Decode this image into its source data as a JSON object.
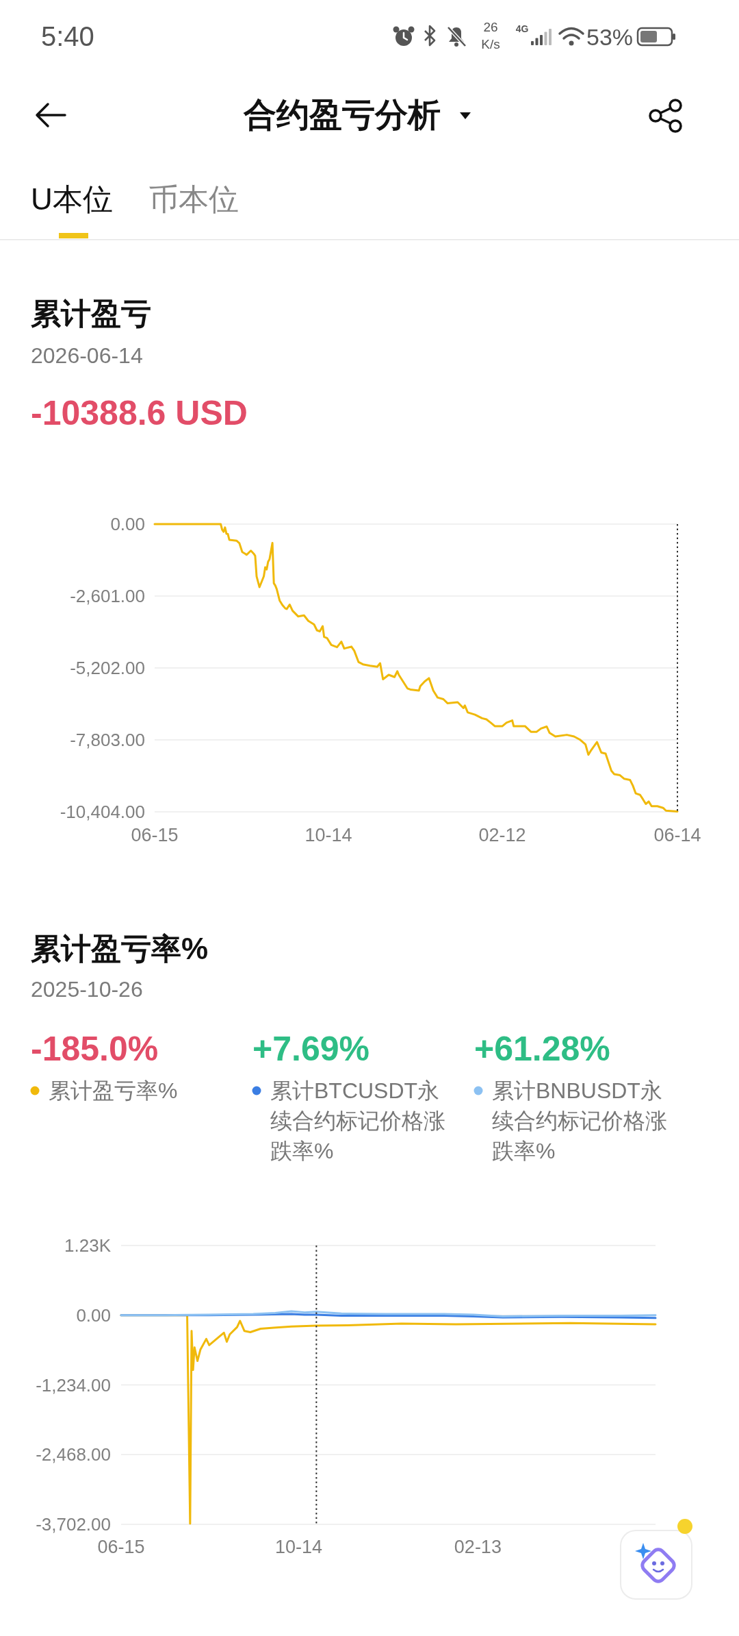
{
  "chart_data": [
    {
      "type": "other",
      "title": "合约盈亏分析",
      "annotations": [
        "5:40",
        "26 K/s",
        "4G",
        "53%",
        "U本位",
        "币本位"
      ]
    },
    {
      "type": "line",
      "title": "累计盈亏",
      "subtitle": "2026-06-14",
      "annotations": [
        "-10388.6 USD"
      ],
      "x": [
        "2025-06-15",
        "2025-07-31",
        "2025-08-01",
        "2025-08-02",
        "2025-08-03",
        "2025-08-04",
        "2025-08-05",
        "2025-08-06",
        "2025-08-11",
        "2025-08-13",
        "2025-08-15",
        "2025-08-17",
        "2025-08-18",
        "2025-08-21",
        "2025-08-23",
        "2025-08-24",
        "2025-08-25",
        "2025-08-27",
        "2025-08-30",
        "2025-08-31",
        "2025-09-01",
        "2025-09-02",
        "2025-09-03",
        "2025-09-05",
        "2025-09-06",
        "2025-09-07",
        "2025-09-08",
        "2025-09-10",
        "2025-09-12",
        "2025-09-14",
        "2025-09-15",
        "2025-09-17",
        "2025-09-19",
        "2025-09-23",
        "2025-09-27",
        "2025-09-30",
        "2025-10-04",
        "2025-10-06",
        "2025-10-08",
        "2025-10-10",
        "2025-10-11",
        "2025-10-13",
        "2025-10-16",
        "2025-10-20",
        "2025-10-23",
        "2025-10-25",
        "2025-10-30",
        "2025-11-01",
        "2025-11-04",
        "2025-11-07",
        "2025-11-12",
        "2025-11-17",
        "2025-11-19",
        "2025-11-21",
        "2025-11-25",
        "2025-11-29",
        "2025-12-01",
        "2025-12-02",
        "2025-12-08",
        "2025-12-10",
        "2025-12-16",
        "2025-12-17",
        "2025-12-20",
        "2025-12-23",
        "2025-12-26",
        "2025-12-29",
        "2026-01-02",
        "2026-01-05",
        "2026-01-12",
        "2026-01-16",
        "2026-01-17",
        "2026-01-19",
        "2026-01-24",
        "2026-01-29",
        "2026-02-01",
        "2026-02-04",
        "2026-02-07",
        "2026-02-12",
        "2026-02-15",
        "2026-02-19",
        "2026-02-20",
        "2026-02-28",
        "2026-03-04",
        "2026-03-08",
        "2026-03-11",
        "2026-03-15",
        "2026-03-17",
        "2026-03-21",
        "2026-03-29",
        "2026-04-03",
        "2026-04-07",
        "2026-04-11",
        "2026-04-13",
        "2026-04-15",
        "2026-04-19",
        "2026-04-22",
        "2026-04-25",
        "2026-04-29",
        "2026-05-01",
        "2026-05-05",
        "2026-05-08",
        "2026-05-12",
        "2026-05-14",
        "2026-05-16",
        "2026-05-19",
        "2026-05-21",
        "2026-05-23",
        "2026-05-25",
        "2026-05-27",
        "2026-05-31",
        "2026-06-04",
        "2026-06-06",
        "2026-06-14"
      ],
      "series": [
        {
          "color": "#f0b90b",
          "values": [
            0,
            0,
            -200,
            -280,
            -120,
            -350,
            -360,
            -570,
            -600,
            -690,
            -1010,
            -1070,
            -1110,
            -960,
            -1070,
            -1150,
            -1890,
            -2280,
            -1890,
            -1560,
            -1640,
            -1360,
            -1270,
            -680,
            -2140,
            -2220,
            -2350,
            -2760,
            -2930,
            -3050,
            -3070,
            -2910,
            -3130,
            -3340,
            -3300,
            -3500,
            -3630,
            -3840,
            -3880,
            -3690,
            -4080,
            -4120,
            -4370,
            -4450,
            -4250,
            -4500,
            -4430,
            -4580,
            -4990,
            -5070,
            -5120,
            -5160,
            -5030,
            -5610,
            -5450,
            -5530,
            -5320,
            -5450,
            -5940,
            -5980,
            -6020,
            -5860,
            -5690,
            -5570,
            -6020,
            -6270,
            -6330,
            -6480,
            -6440,
            -6650,
            -6560,
            -6810,
            -6890,
            -7020,
            -7060,
            -7180,
            -7310,
            -7310,
            -7180,
            -7100,
            -7310,
            -7310,
            -7510,
            -7510,
            -7390,
            -7320,
            -7550,
            -7680,
            -7620,
            -7680,
            -7790,
            -7970,
            -8340,
            -8170,
            -7880,
            -8260,
            -8300,
            -8920,
            -9040,
            -9080,
            -9210,
            -9250,
            -9460,
            -9740,
            -9790,
            -9950,
            -10120,
            -10030,
            -10200,
            -10200,
            -10260,
            -10360,
            -10388.6
          ]
        }
      ],
      "xlim": [
        "2025-06-15",
        "2026-06-14"
      ],
      "xticks": [
        {
          "value": "2025-06-15",
          "label": "06-15"
        },
        {
          "value": "2025-10-14",
          "label": "10-14"
        },
        {
          "value": "2026-02-12",
          "label": "02-12"
        },
        {
          "value": "2026-06-14",
          "label": "06-14"
        }
      ],
      "ylim": [
        -10404,
        0
      ],
      "yticks": [
        {
          "value": 0,
          "label": "0.00"
        },
        {
          "value": -2601,
          "label": "-2,601.00"
        },
        {
          "value": -5202,
          "label": "-5,202.00"
        },
        {
          "value": -7803,
          "label": "-7,803.00"
        },
        {
          "value": -10404,
          "label": "-10,404.00"
        }
      ],
      "grid": "y",
      "ref_lines": [
        {
          "axis": "x",
          "value": "2026-06-14",
          "color": "#333333",
          "line_style": "dotted"
        }
      ]
    },
    {
      "type": "line",
      "title": "累计盈亏率%",
      "subtitle": "2025-10-26",
      "legend": "top",
      "annotations": [
        "-185.0%",
        "+7.69%",
        "+61.28%"
      ],
      "series": [
        {
          "name": "累计盈亏率%",
          "color": "#f0b90b",
          "x": [
            "2025-06-15",
            "2025-07-30",
            "2025-08-01",
            "2025-08-02",
            "2025-08-03",
            "2025-08-04",
            "2025-08-06",
            "2025-08-08",
            "2025-08-12",
            "2025-08-14",
            "2025-08-19",
            "2025-08-24",
            "2025-08-26",
            "2025-08-28",
            "2025-09-02",
            "2025-09-04",
            "2025-09-07",
            "2025-09-11",
            "2025-09-18",
            "2025-09-27",
            "2025-10-09",
            "2025-10-26",
            "2025-11-16",
            "2025-12-23",
            "2026-01-29",
            "2026-04-17",
            "2026-06-14"
          ],
          "values": [
            0,
            0,
            -3690,
            -280,
            -970,
            -570,
            -810,
            -610,
            -420,
            -530,
            -420,
            -310,
            -470,
            -340,
            -210,
            -100,
            -280,
            -300,
            -240,
            -220,
            -200,
            -185.0,
            -180,
            -150,
            -160,
            -140,
            -160
          ]
        },
        {
          "name": "累计BTCUSDT永续合约标记价格涨跌率%",
          "color": "#3b7ee3",
          "x": [
            "2025-06-15",
            "2025-07-15",
            "2025-08-14",
            "2025-09-13",
            "2025-10-09",
            "2025-10-18",
            "2025-10-26",
            "2025-11-12",
            "2025-12-12",
            "2026-01-21",
            "2026-02-10",
            "2026-03-02",
            "2026-04-11",
            "2026-05-21",
            "2026-06-14"
          ],
          "values": [
            0,
            0,
            0,
            10,
            20,
            10,
            7.69,
            -10,
            -10,
            -10,
            -20,
            -40,
            -30,
            -40,
            -50
          ]
        },
        {
          "name": "累计BNBUSDT永续合约标记价格涨跌率%",
          "color": "#8cc1f2",
          "x": [
            "2025-06-15",
            "2025-07-15",
            "2025-08-14",
            "2025-09-13",
            "2025-09-28",
            "2025-10-09",
            "2025-10-18",
            "2025-10-26",
            "2025-11-12",
            "2025-12-12",
            "2026-01-21",
            "2026-02-10",
            "2026-03-02",
            "2026-04-11",
            "2026-05-21",
            "2026-06-14"
          ],
          "values": [
            0,
            0,
            10,
            20,
            40,
            70,
            50,
            61.28,
            30,
            20,
            20,
            10,
            -20,
            -10,
            -10,
            0
          ]
        }
      ],
      "xlim": [
        "2025-06-15",
        "2026-06-14"
      ],
      "xticks": [
        {
          "value": "2025-06-15",
          "label": "06-15"
        },
        {
          "value": "2025-10-14",
          "label": "10-14"
        },
        {
          "value": "2026-02-13",
          "label": "02-13"
        }
      ],
      "ylim": [
        -3702,
        1234
      ],
      "yticks": [
        {
          "value": 1234,
          "label": "1.23K"
        },
        {
          "value": 0,
          "label": "0.00"
        },
        {
          "value": -1234,
          "label": "-1,234.00"
        },
        {
          "value": -2468,
          "label": "-2,468.00"
        },
        {
          "value": -3702,
          "label": "-3,702.00"
        }
      ],
      "grid": "y",
      "ref_lines": [
        {
          "axis": "x",
          "value": "2025-10-26",
          "color": "#333333",
          "line_style": "dotted"
        }
      ]
    }
  ]
}
